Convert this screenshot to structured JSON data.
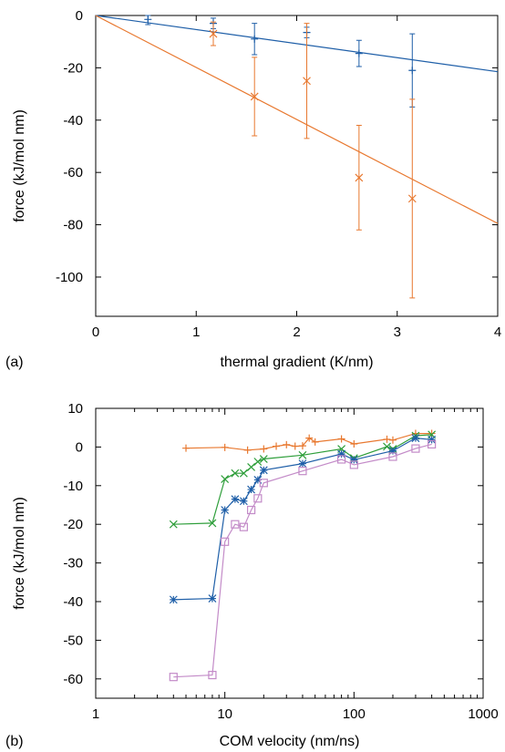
{
  "chart_data": [
    {
      "type": "scatter",
      "panel_label": "(a)",
      "xlabel": "thermal gradient (K/nm)",
      "ylabel": "force (kJ/mol nm)",
      "xlim": [
        0,
        4
      ],
      "ylim": [
        -115,
        0
      ],
      "x_ticks": [
        0,
        1,
        2,
        3,
        4
      ],
      "y_ticks": [
        0,
        -20,
        -40,
        -60,
        -80,
        -100
      ],
      "grid": false,
      "legend": "none",
      "series": [
        {
          "color": "#1f5fa8",
          "marker": "plus",
          "points": [
            {
              "x": 0.52,
              "y": -1.5,
              "err": 2
            },
            {
              "x": 1.17,
              "y": -3,
              "err": 2
            },
            {
              "x": 1.58,
              "y": -9,
              "err": 6
            },
            {
              "x": 2.1,
              "y": -6.5,
              "err": 2
            },
            {
              "x": 2.62,
              "y": -14.5,
              "err": 5
            },
            {
              "x": 3.15,
              "y": -21,
              "err": 14
            }
          ],
          "fit": {
            "x": [
              0,
              4
            ],
            "y": [
              0,
              -21.5
            ]
          }
        },
        {
          "color": "#e8782f",
          "marker": "cross",
          "points": [
            {
              "x": 1.17,
              "y": -7,
              "err": 4.5
            },
            {
              "x": 1.58,
              "y": -31,
              "err": 15
            },
            {
              "x": 2.1,
              "y": -25,
              "err": 22
            },
            {
              "x": 2.62,
              "y": -62,
              "err": 20
            },
            {
              "x": 3.15,
              "y": -70,
              "err": 38
            }
          ],
          "fit": {
            "x": [
              0,
              4
            ],
            "y": [
              0,
              -79.5
            ]
          }
        }
      ]
    },
    {
      "type": "line",
      "panel_label": "(b)",
      "xlabel": "COM velocity (nm/ns)",
      "ylabel": "force (kJ/mol nm)",
      "xscale": "log",
      "xlim": [
        1,
        1000
      ],
      "ylim": [
        -65,
        10
      ],
      "x_ticks": [
        1,
        10,
        100,
        1000
      ],
      "y_ticks": [
        10,
        0,
        -10,
        -20,
        -30,
        -40,
        -50,
        -60
      ],
      "grid": false,
      "legend": "none",
      "series": [
        {
          "color": "#e8782f",
          "marker": "plus",
          "x": [
            5,
            10,
            15,
            20,
            25,
            30,
            35,
            40,
            45,
            50,
            80,
            100,
            180,
            200,
            300,
            400
          ],
          "y": [
            -0.3,
            -0.1,
            -0.8,
            -0.5,
            0.2,
            0.6,
            0.2,
            0.3,
            2.3,
            1.3,
            2.1,
            0.8,
            2,
            1.8,
            3.5,
            3.5
          ]
        },
        {
          "color": "#2e9e3a",
          "marker": "cross",
          "x": [
            4,
            8,
            10,
            12,
            14,
            16,
            18,
            20,
            40,
            80,
            100,
            180,
            200,
            300,
            400
          ],
          "y": [
            -20,
            -19.7,
            -8.3,
            -6.8,
            -6.8,
            -5.2,
            -3.8,
            -3.1,
            -2.1,
            -0.5,
            -2.9,
            0.1,
            -0.5,
            2.9,
            3.2
          ]
        },
        {
          "color": "#1f5fa8",
          "marker": "star",
          "x": [
            4,
            8,
            10,
            12,
            14,
            16,
            18,
            20,
            40,
            80,
            100,
            200,
            300,
            400
          ],
          "y": [
            -39.5,
            -39.2,
            -16.3,
            -13.5,
            -14,
            -11,
            -8.5,
            -6,
            -4.3,
            -1.8,
            -3.3,
            -1,
            2.3,
            1.9
          ]
        },
        {
          "color": "#c38bc8",
          "marker": "square",
          "x": [
            4,
            8,
            10,
            12,
            14,
            16,
            18,
            20,
            40,
            80,
            100,
            200,
            300,
            400
          ],
          "y": [
            -59.5,
            -59,
            -24.5,
            -20,
            -20.7,
            -16.3,
            -13.3,
            -9.3,
            -6.2,
            -3.2,
            -4.6,
            -2.5,
            -0.4,
            0.7
          ]
        }
      ]
    }
  ]
}
